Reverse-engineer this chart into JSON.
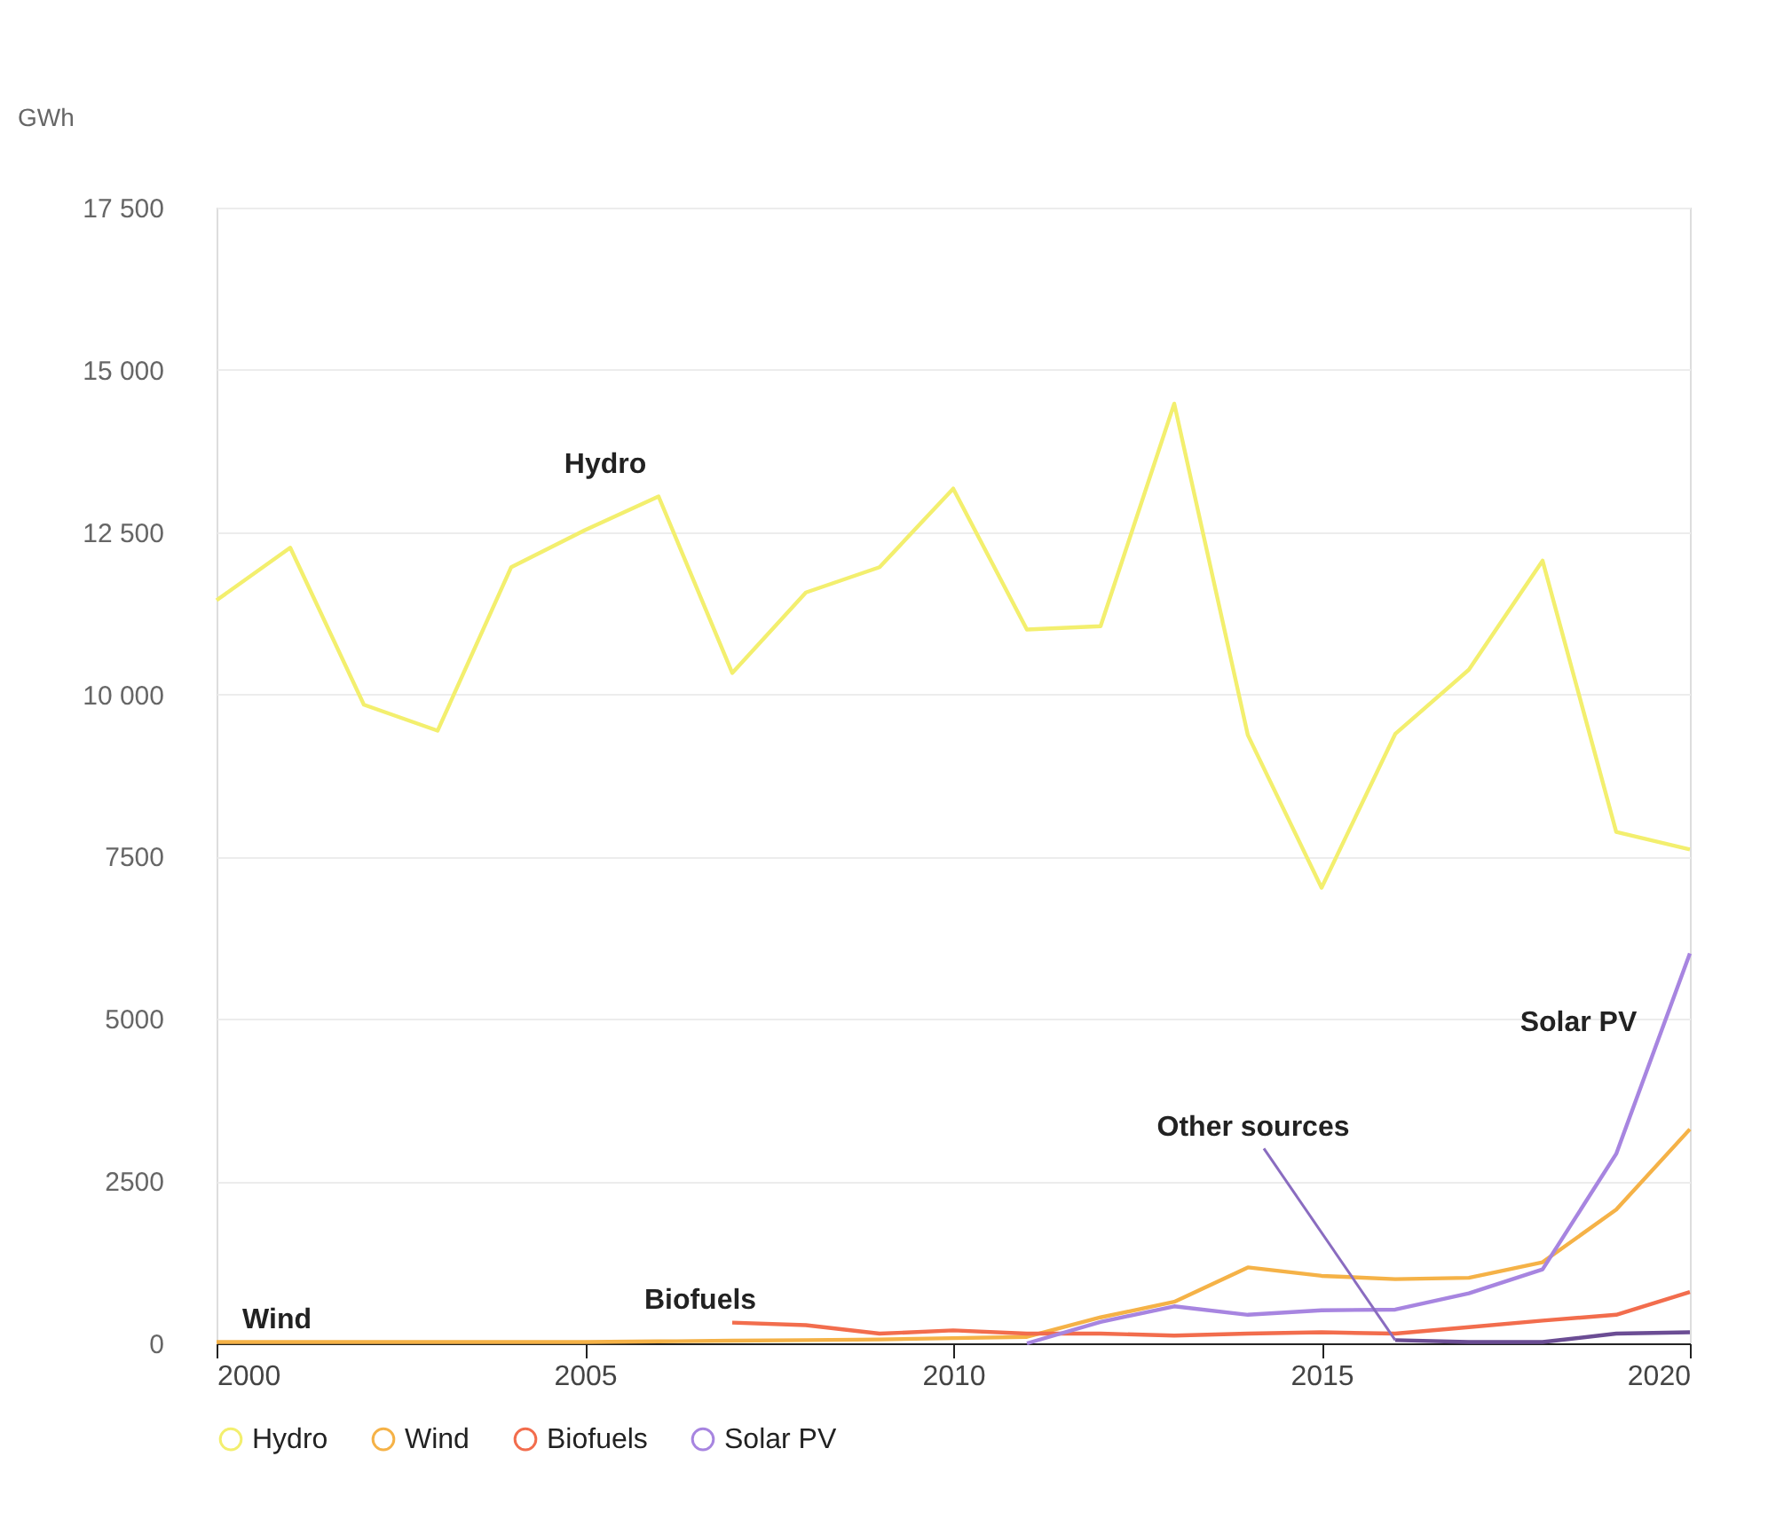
{
  "chart_data": {
    "type": "line",
    "ylabel": "GWh",
    "x": [
      2000,
      2001,
      2002,
      2003,
      2004,
      2005,
      2006,
      2007,
      2008,
      2009,
      2010,
      2011,
      2012,
      2013,
      2014,
      2015,
      2016,
      2017,
      2018,
      2019,
      2020
    ],
    "series": [
      {
        "name": "Hydro",
        "color": "#f3ef6e",
        "values": [
          11450,
          12260,
          9840,
          9440,
          11960,
          12530,
          13050,
          10330,
          11570,
          11960,
          13170,
          11000,
          11050,
          14480,
          9370,
          7020,
          9390,
          10380,
          12060,
          7880,
          7610
        ]
      },
      {
        "name": "Wind",
        "color": "#f5b247",
        "values": [
          20,
          20,
          20,
          20,
          20,
          20,
          30,
          40,
          50,
          60,
          80,
          100,
          400,
          640,
          1170,
          1040,
          990,
          1010,
          1250,
          2060,
          3300
        ]
      },
      {
        "name": "Biofuels",
        "color": "#f26d4d",
        "values": [
          null,
          null,
          null,
          null,
          null,
          null,
          null,
          320,
          280,
          150,
          200,
          150,
          150,
          120,
          150,
          170,
          150,
          250,
          350,
          440,
          790
        ]
      },
      {
        "name": "Solar PV",
        "color": "#a785e0",
        "values": [
          null,
          null,
          null,
          null,
          null,
          null,
          null,
          null,
          null,
          null,
          null,
          0,
          330,
          570,
          440,
          510,
          520,
          770,
          1140,
          2920,
          6010
        ]
      },
      {
        "color": "#6b4d94",
        "values": [
          null,
          null,
          null,
          null,
          null,
          null,
          null,
          null,
          null,
          null,
          null,
          null,
          null,
          null,
          null,
          null,
          50,
          20,
          20,
          150,
          170
        ]
      }
    ],
    "annotations": [
      {
        "text": "Hydro",
        "x": 2006,
        "y": 13050
      },
      {
        "text": "Wind",
        "x": 2000,
        "y": 20
      },
      {
        "text": "Biofuels",
        "x": 2007,
        "y": 320
      },
      {
        "text": "Solar PV",
        "x": 2019.5,
        "y": 4460
      },
      {
        "text": "Other sources",
        "x": 2016,
        "y": 50
      }
    ],
    "xlim": [
      2000,
      2020
    ],
    "xticks": [
      2000,
      2005,
      2010,
      2015,
      2020
    ],
    "ylim": [
      0,
      17500
    ],
    "yticks": [
      0,
      2500,
      5000,
      {
        "value": 7500,
        "label": "7500"
      },
      {
        "value": 10000,
        "label": "10 000"
      },
      {
        "value": 12500,
        "label": "12 500"
      },
      {
        "value": 15000,
        "label": "15 000"
      },
      {
        "value": 17500,
        "label": "17 500"
      }
    ],
    "grid": "y",
    "legend": "bottom",
    "line_style": "solid",
    "marker": "none"
  }
}
